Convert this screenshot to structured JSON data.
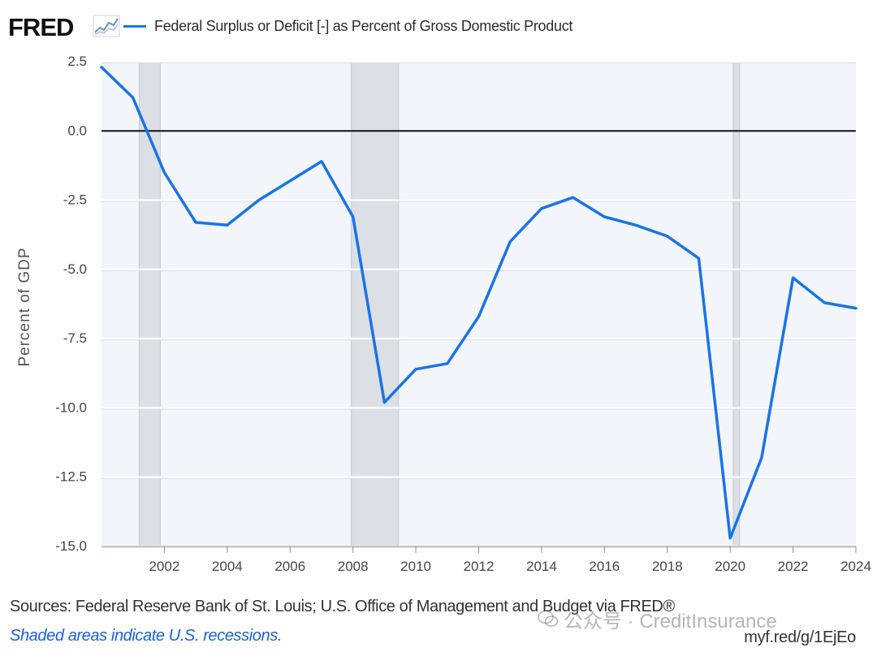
{
  "brand": {
    "logo_text": "FRED",
    "logo_icon": "line-chart-icon"
  },
  "legend": {
    "label": "Federal Surplus or Deficit [-] as Percent of Gross Domestic Product",
    "color": "#1a73e8"
  },
  "chart_data": {
    "type": "line",
    "title": "",
    "xlabel": "",
    "ylabel": "Percent of GDP",
    "x": [
      2000,
      2001,
      2002,
      2003,
      2004,
      2005,
      2006,
      2007,
      2008,
      2009,
      2010,
      2011,
      2012,
      2013,
      2014,
      2015,
      2016,
      2017,
      2018,
      2019,
      2020,
      2021,
      2022,
      2023,
      2024
    ],
    "series": [
      {
        "name": "Federal Surplus or Deficit [-] as Percent of Gross Domestic Product",
        "color": "#1a73e8",
        "values": [
          2.3,
          1.2,
          -1.5,
          -3.3,
          -3.4,
          -2.5,
          -1.8,
          -1.1,
          -3.1,
          -9.8,
          -8.6,
          -8.4,
          -6.7,
          -4.0,
          -2.8,
          -2.4,
          -3.1,
          -3.4,
          -3.8,
          -4.6,
          -14.7,
          -11.8,
          -5.3,
          -6.2,
          -6.4
        ]
      }
    ],
    "x_ticks": [
      "2002",
      "2004",
      "2006",
      "2008",
      "2010",
      "2012",
      "2014",
      "2016",
      "2018",
      "2020",
      "2022",
      "2024"
    ],
    "y_ticks": [
      "2.5",
      "0.0",
      "-2.5",
      "-5.0",
      "-7.5",
      "-10.0",
      "-12.5",
      "-15.0"
    ],
    "xlim": [
      2000,
      2024
    ],
    "ylim": [
      -15.0,
      2.5
    ],
    "recessions": [
      [
        2001.2,
        2001.87
      ],
      [
        2007.95,
        2009.45
      ],
      [
        2020.1,
        2020.3
      ]
    ],
    "reference_line": 0.0,
    "grid": "horizontal",
    "plot_background": "#f2f6fb"
  },
  "footer": {
    "sources": "Sources: Federal Reserve Bank of St. Louis; U.S. Office of Management and Budget via FRED®",
    "note": "Shaded areas indicate U.S. recessions.",
    "link": "myf.red/g/1EjEo"
  },
  "watermark": {
    "text": "公众号 · CreditInsurance",
    "icon": "wechat-icon"
  }
}
